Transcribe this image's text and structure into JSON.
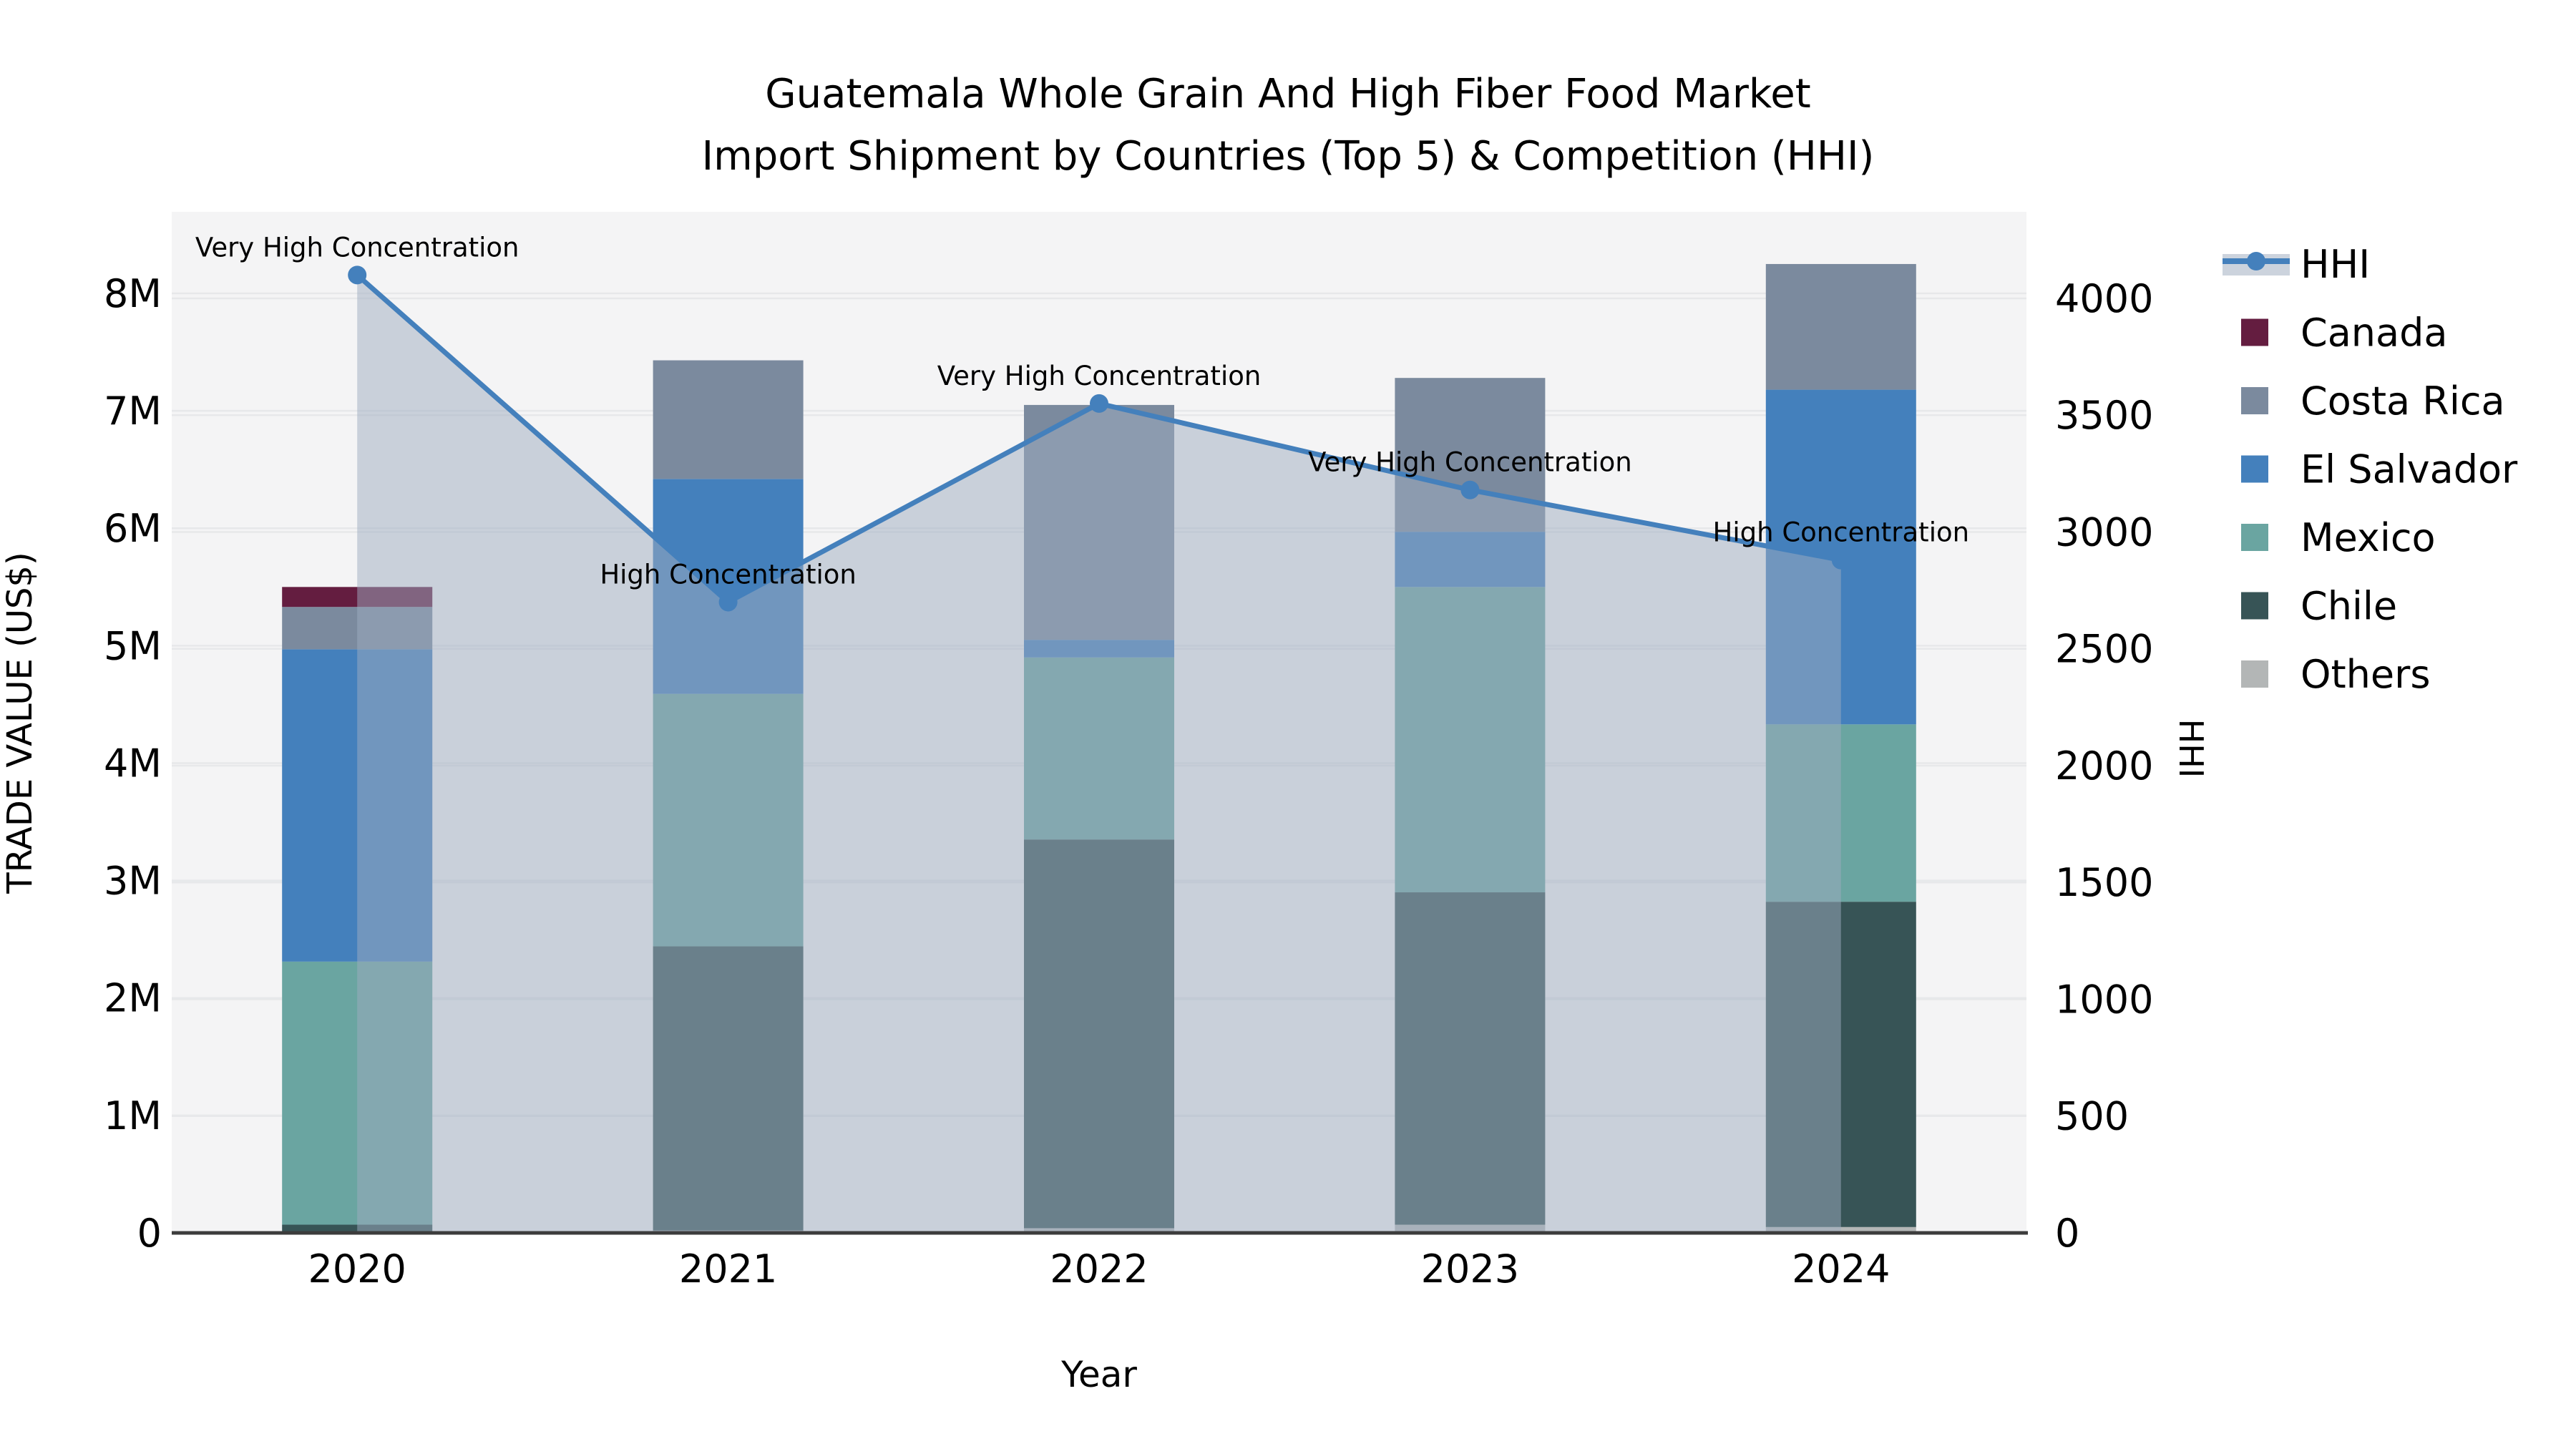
{
  "title": {
    "line1": "Guatemala Whole Grain And High Fiber Food Market",
    "line2": "Import Shipment by Countries (Top 5) & Competition (HHI)"
  },
  "axes": {
    "x": {
      "label": "Year",
      "tick_labels": [
        "2020",
        "2021",
        "2022",
        "2023",
        "2024"
      ]
    },
    "y_left": {
      "label": "TRADE VALUE (US$)",
      "tick_labels": [
        "0",
        "1M",
        "2M",
        "3M",
        "4M",
        "5M",
        "6M",
        "7M",
        "8M"
      ],
      "tick_values_millions": [
        0,
        1,
        2,
        3,
        4,
        5,
        6,
        7,
        8
      ],
      "ylim_millions": [
        0,
        8.7
      ]
    },
    "y_right": {
      "label": "HHI",
      "tick_labels": [
        "0",
        "500",
        "1000",
        "1500",
        "2000",
        "2500",
        "3000",
        "3500",
        "4000"
      ],
      "tick_values": [
        0,
        500,
        1000,
        1500,
        2000,
        2500,
        3000,
        3500,
        4000
      ],
      "ylim": [
        0,
        4370
      ]
    }
  },
  "chart_data": {
    "type": "bar",
    "subtype": "stacked-bars-with-line-overlay",
    "categories": [
      "2020",
      "2021",
      "2022",
      "2023",
      "2024"
    ],
    "bar_value_unit": "US$ millions",
    "stack_order_bottom_to_top": [
      "Others",
      "Chile",
      "Mexico",
      "El Salvador",
      "Costa Rica",
      "Canada"
    ],
    "series": [
      {
        "name": "Canada",
        "color": "#641d40",
        "values": [
          0.17,
          0.0,
          0.0,
          0.0,
          0.0
        ]
      },
      {
        "name": "Costa Rica",
        "color": "#7b8a9e",
        "values": [
          0.36,
          1.01,
          2.0,
          1.31,
          1.07
        ]
      },
      {
        "name": "El Salvador",
        "color": "#4480bc",
        "values": [
          2.66,
          1.83,
          0.15,
          0.47,
          2.85
        ]
      },
      {
        "name": "Mexico",
        "color": "#6aa5a1",
        "values": [
          2.24,
          2.15,
          1.55,
          2.6,
          1.51
        ]
      },
      {
        "name": "Chile",
        "color": "#375456",
        "values": [
          0.07,
          2.42,
          3.31,
          2.83,
          2.77
        ]
      },
      {
        "name": "Others",
        "color": "#b3b6b6",
        "values": [
          0.0,
          0.02,
          0.04,
          0.07,
          0.05
        ]
      }
    ],
    "bar_totals_millions": [
      5.5,
      7.43,
      7.05,
      7.28,
      8.25
    ],
    "line_series": {
      "name": "HHI",
      "color": "#4480bc",
      "area_fill_color": "rgba(158,172,192,0.5)",
      "values": [
        4100,
        2700,
        3550,
        3180,
        2880
      ],
      "axis": "y_right"
    },
    "annotations": [
      {
        "category": "2020",
        "text": "Very High Concentration"
      },
      {
        "category": "2021",
        "text": "High Concentration"
      },
      {
        "category": "2022",
        "text": "Very High Concentration"
      },
      {
        "category": "2023",
        "text": "Very High Concentration"
      },
      {
        "category": "2024",
        "text": "High Concentration"
      }
    ],
    "legend_position": "right",
    "grid": true
  },
  "legend": {
    "items": [
      {
        "label": "HHI",
        "symbol": "line-with-band",
        "color": "#4480bc",
        "band_color": "#ccd3dd"
      },
      {
        "label": "Canada",
        "symbol": "square",
        "color": "#641d40"
      },
      {
        "label": "Costa Rica",
        "symbol": "square",
        "color": "#7b8a9e"
      },
      {
        "label": "El Salvador",
        "symbol": "square",
        "color": "#4480bc"
      },
      {
        "label": "Mexico",
        "symbol": "square",
        "color": "#6aa5a1"
      },
      {
        "label": "Chile",
        "symbol": "square",
        "color": "#375456"
      },
      {
        "label": "Others",
        "symbol": "square",
        "color": "#b3b6b6"
      }
    ]
  },
  "style_colors": {
    "plot_background": "#f4f4f5",
    "gridline": "#e7e8ea",
    "axis_line": "#3c3c3c",
    "text": "#000000"
  }
}
